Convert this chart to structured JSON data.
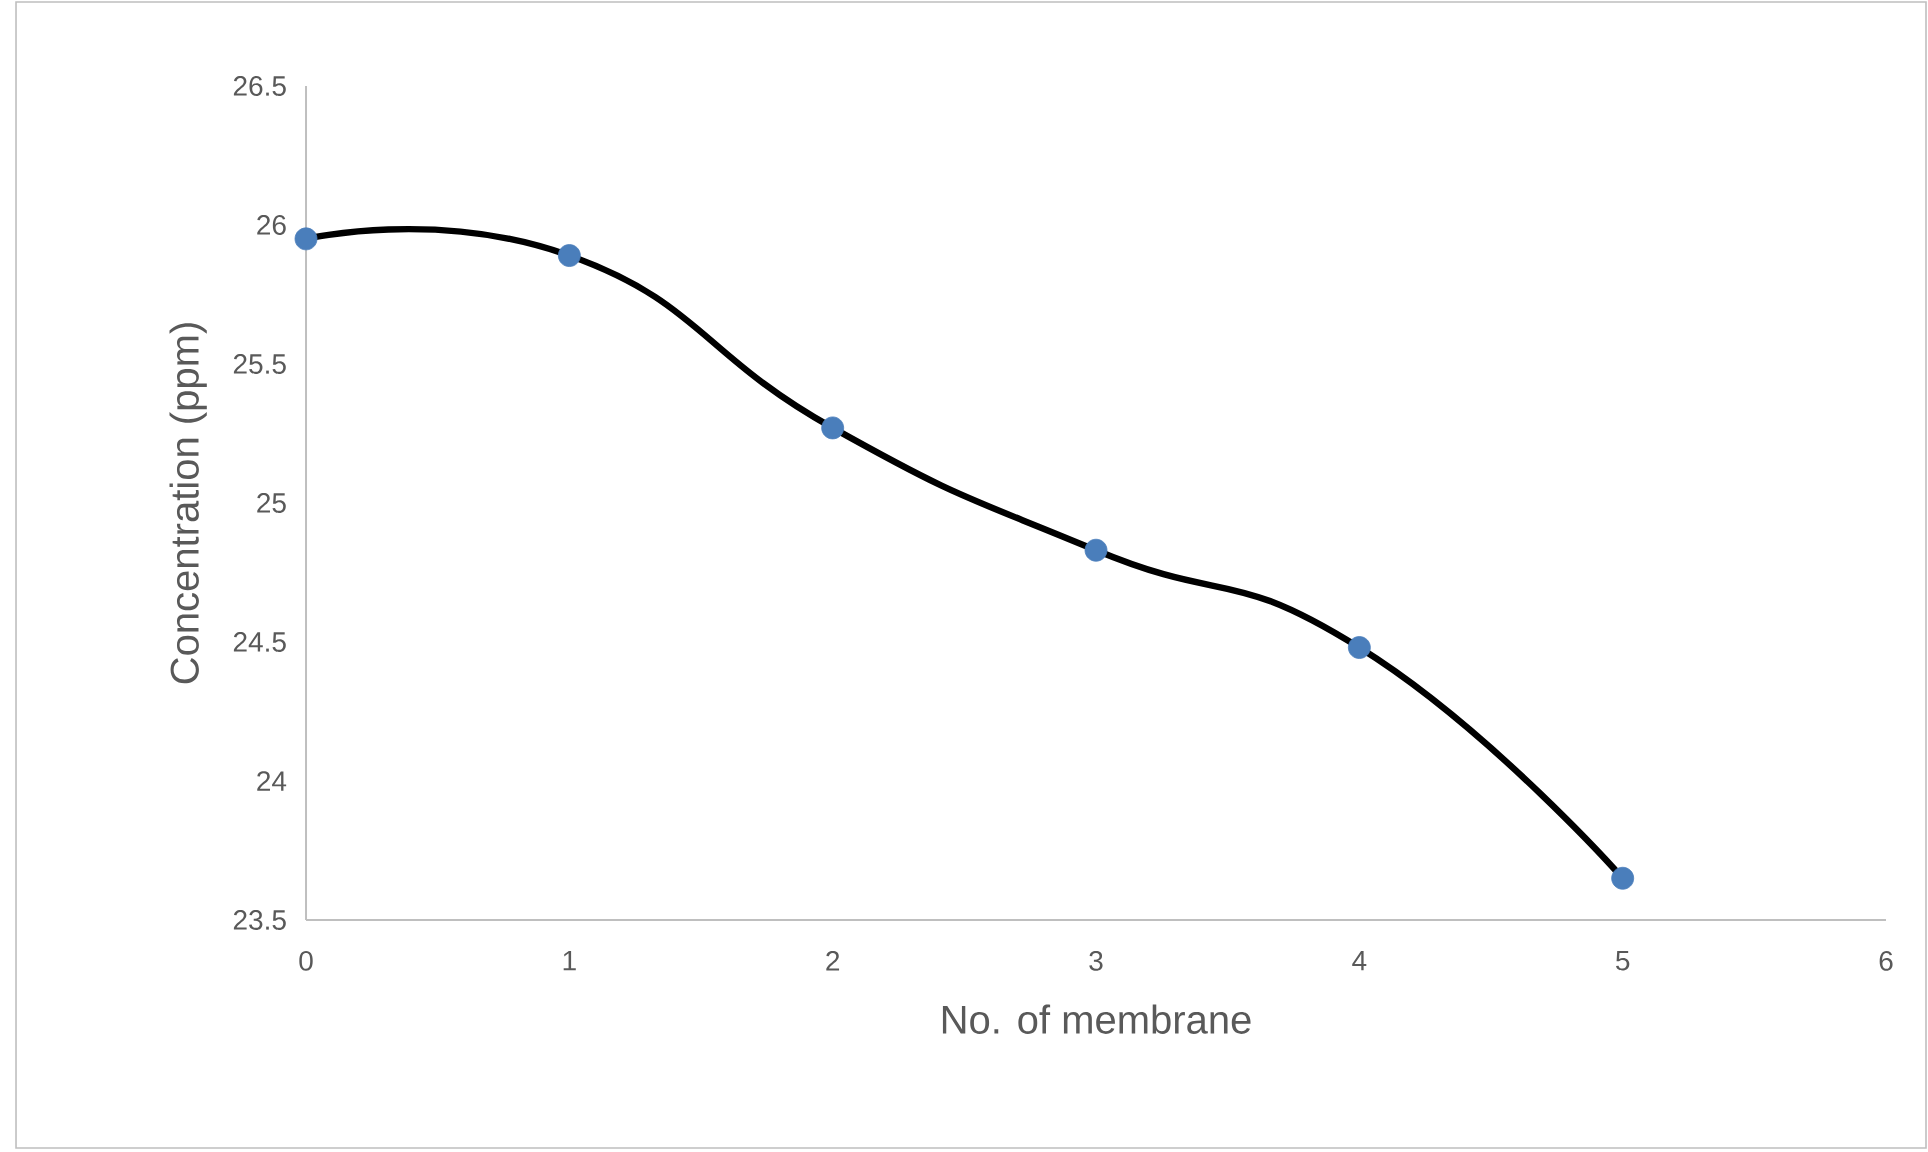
{
  "chart_data": {
    "type": "line",
    "xlabel": "No. of membrane",
    "ylabel": "Concentration (ppm)",
    "x": [
      0,
      1,
      2,
      3,
      4,
      5
    ],
    "series": [
      {
        "type": "scatter",
        "color": "#4a7ebb",
        "marker": "circle",
        "values": [
          25.95,
          25.89,
          25.27,
          24.83,
          24.48,
          23.65
        ]
      },
      {
        "color": "#000000",
        "marker": "none",
        "line_style": "solid",
        "values": [
          25.95,
          25.89,
          25.27,
          24.83,
          24.48,
          23.65
        ]
      }
    ],
    "xlim": [
      0,
      6
    ],
    "xticks": [
      0,
      1,
      2,
      3,
      4,
      5,
      6
    ],
    "ylim": [
      23.5,
      26.5
    ],
    "yticks": [
      23.5,
      24,
      24.5,
      25,
      25.5,
      26,
      26.5
    ],
    "grid": false
  }
}
